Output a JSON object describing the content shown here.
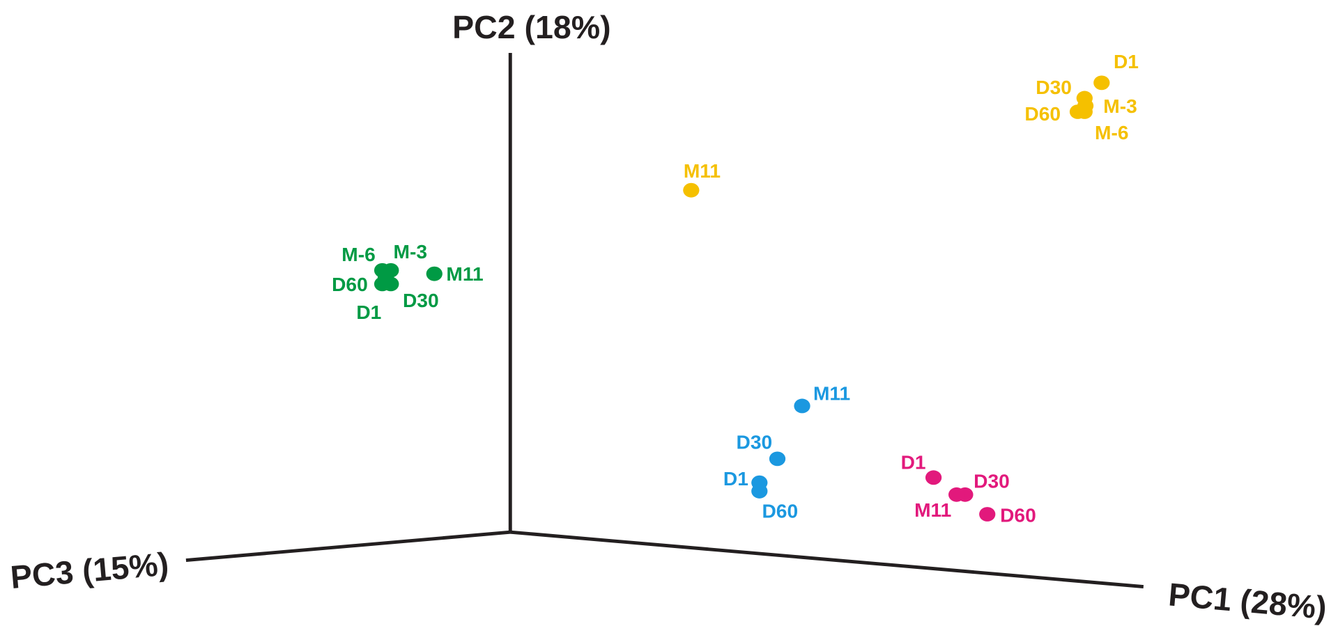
{
  "axes": {
    "pc2": "PC2 (18%)",
    "pc3": "PC3 (15%)",
    "pc1": "PC1 (28%)"
  },
  "groups": [
    {
      "color": "#f5c000",
      "points": [
        {
          "label": "D1"
        },
        {
          "label": "D30"
        },
        {
          "label": "M-3"
        },
        {
          "label": "D60"
        },
        {
          "label": "M-6"
        },
        {
          "label": "M11"
        }
      ]
    },
    {
      "color": "#009a44",
      "points": [
        {
          "label": "M-6"
        },
        {
          "label": "M-3"
        },
        {
          "label": "D60"
        },
        {
          "label": "D30"
        },
        {
          "label": "D1"
        },
        {
          "label": "M11"
        }
      ]
    },
    {
      "color": "#1b98e0",
      "points": [
        {
          "label": "M11"
        },
        {
          "label": "D30"
        },
        {
          "label": "D1"
        },
        {
          "label": "D60"
        }
      ]
    },
    {
      "color": "#e2197c",
      "points": [
        {
          "label": "D1"
        },
        {
          "label": "D30"
        },
        {
          "label": "M11"
        },
        {
          "label": "D60"
        }
      ]
    }
  ]
}
